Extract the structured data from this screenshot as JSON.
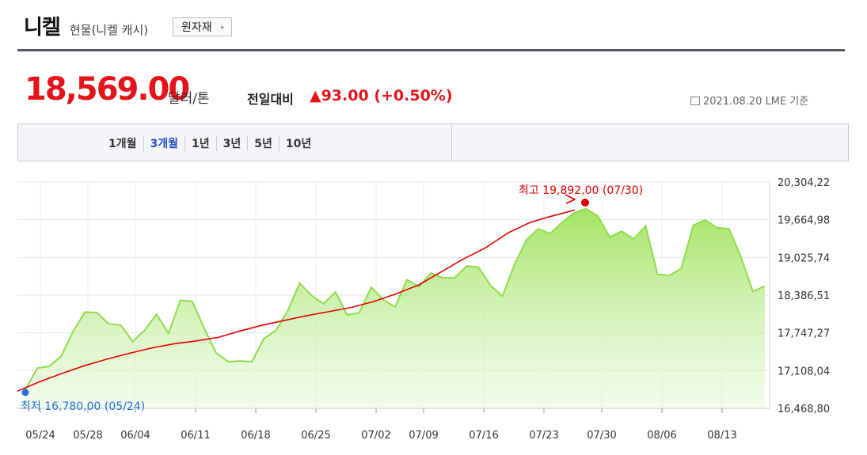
{
  "header": {
    "title": "니켈",
    "subtitle": "현물(니켈 캐시)",
    "material_button": "원자재",
    "button_arrow": "▸"
  },
  "quote": {
    "price": "18,569.00",
    "unit": "달러/톤",
    "change_label": "전일대비",
    "change": "▲93.00 (+0.50%)",
    "date": "2021.08.20 LME 기준"
  },
  "range_tabs": [
    "1개월",
    "3개월",
    "1년",
    "3년",
    "5년",
    "10년"
  ],
  "active_range": "3개월",
  "colors": {
    "accent": "#e4141b",
    "active_tab": "#2b4fc3",
    "area_line": "#8fdc4c",
    "trend": "#e00000",
    "low_marker": "#2670d9"
  },
  "chart_data": {
    "type": "area",
    "xlabel": "",
    "ylabel": "",
    "ylim": [
      16468.8,
      20304.22
    ],
    "y_ticks": [
      "20,304,22",
      "19,664,98",
      "19,025,74",
      "18,386,51",
      "17,747,27",
      "17,108,04",
      "16,468,80"
    ],
    "x_ticks": [
      "05/24",
      "05/28",
      "06/04",
      "06/11",
      "06/18",
      "06/25",
      "07/02",
      "07/09",
      "07/16",
      "07/23",
      "07/30",
      "08/06",
      "08/13"
    ],
    "grid": true,
    "series": [
      {
        "values": [
          16780,
          17150,
          17180,
          17350,
          17770,
          18100,
          18090,
          17900,
          17880,
          17600,
          17790,
          18060,
          17740,
          18300,
          18280,
          17820,
          17410,
          17260,
          17270,
          17260,
          17650,
          17790,
          18120,
          18590,
          18380,
          18240,
          18440,
          18050,
          18090,
          18520,
          18310,
          18190,
          18650,
          18530,
          18760,
          18680,
          18680,
          18880,
          18860,
          18550,
          18370,
          18900,
          19320,
          19510,
          19430,
          19620,
          19780,
          19850,
          19730,
          19370,
          19470,
          19340,
          19560,
          18740,
          18720,
          18840,
          19570,
          19660,
          19530,
          19510,
          19030,
          18450,
          18540
        ]
      },
      {
        "name": "",
        "trend": true,
        "values": [
          16760,
          16920,
          17060,
          17190,
          17300,
          17400,
          17490,
          17560,
          17610,
          17670,
          17780,
          17880,
          17960,
          18040,
          18110,
          18180,
          18280,
          18410,
          18560,
          18780,
          19000,
          19190,
          19440,
          19620,
          19730,
          19830
        ]
      }
    ],
    "annotations": {
      "high": {
        "label": "최고 19,892,00 (07/30)",
        "value": 19892.0
      },
      "low": {
        "label": "최저 16,780,00 (05/24)",
        "value": 16780.0
      }
    }
  }
}
